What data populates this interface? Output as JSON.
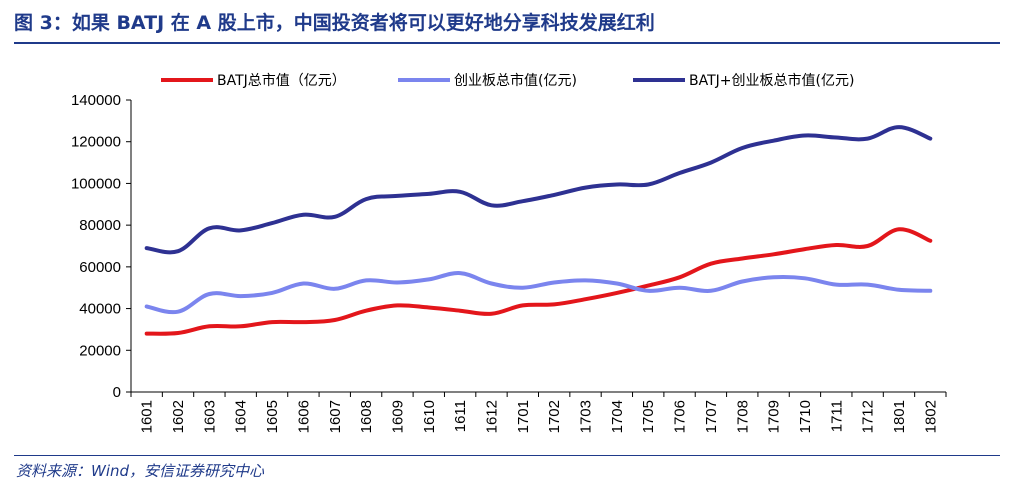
{
  "figure": {
    "title": "图 3：如果 BATJ 在 A 股上市，中国投资者将可以更好地分享科技发展红利",
    "source": "资料来源：Wind，安信证券研究中心"
  },
  "colors": {
    "title": "#1f3a8a",
    "batj": "#e3161b",
    "chinext": "#7b85ee",
    "combined": "#2e3192"
  },
  "chart_data": {
    "type": "line",
    "title": "",
    "xlabel": "",
    "ylabel": "",
    "ylim": [
      0,
      140000
    ],
    "yticks": [
      "0",
      "20000",
      "40000",
      "60000",
      "80000",
      "100000",
      "120000",
      "140000"
    ],
    "grid": false,
    "legend_position": "top",
    "categories": [
      "1601",
      "1602",
      "1603",
      "1604",
      "1605",
      "1606",
      "1607",
      "1608",
      "1609",
      "1610",
      "1611",
      "1612",
      "1701",
      "1702",
      "1703",
      "1704",
      "1705",
      "1706",
      "1707",
      "1708",
      "1709",
      "1710",
      "1711",
      "1712",
      "1801",
      "1802"
    ],
    "series": [
      {
        "name": "BATJ总市值（亿元）",
        "values": [
          28000,
          28300,
          31500,
          31500,
          33500,
          33500,
          34500,
          39000,
          41500,
          40500,
          39000,
          37500,
          41500,
          42000,
          44500,
          47500,
          51000,
          55000,
          61500,
          64000,
          66000,
          68500,
          70500,
          70000,
          78000,
          72500
        ]
      },
      {
        "name": "创业板总市值(亿元)",
        "values": [
          41000,
          38500,
          47000,
          46000,
          47500,
          52000,
          49500,
          53500,
          52500,
          54000,
          57000,
          52000,
          50000,
          52500,
          53500,
          52000,
          48500,
          50000,
          48500,
          53000,
          55000,
          54500,
          51500,
          51500,
          49000,
          48500
        ]
      },
      {
        "name": "BATJ+创业板总市值(亿元)",
        "values": [
          69000,
          67500,
          78500,
          77500,
          81000,
          85000,
          84000,
          92500,
          94000,
          95000,
          96000,
          89500,
          91500,
          94500,
          98000,
          99500,
          99500,
          105000,
          110000,
          117000,
          120500,
          123000,
          122000,
          121500,
          127000,
          121500
        ]
      }
    ]
  }
}
